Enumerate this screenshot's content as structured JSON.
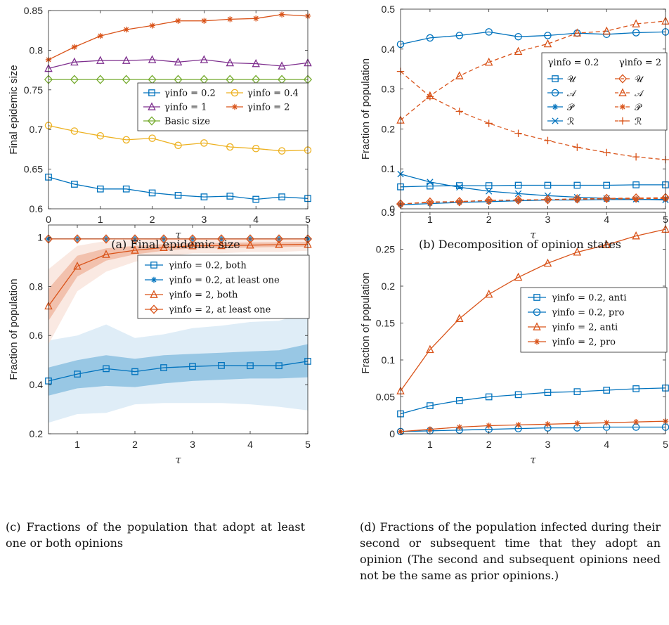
{
  "colors": {
    "blue": "#0072BD",
    "orange": "#D95319",
    "yellow": "#EDB120",
    "purple": "#7E2F8E",
    "green": "#77AC30"
  },
  "captions": {
    "a": "(a) Final epidemic size",
    "b": "(b) Decomposition of opinion states",
    "c": "(c) Fractions of the population that adopt at least one or both opinions",
    "d": "(d) Fractions of the population infected during their second or subsequent time that they adopt an opinion (The second and subsequent opinions need not be the same as prior opinions.)"
  },
  "chart_data": [
    {
      "id": "a",
      "type": "line",
      "xlabel": "τ",
      "ylabel": "Final epidemic size",
      "xlim": [
        0,
        5
      ],
      "ylim": [
        0.6,
        0.85
      ],
      "xticks": [
        0,
        1,
        2,
        3,
        4,
        5
      ],
      "yticks": [
        0.6,
        0.65,
        0.7,
        0.75,
        0.8,
        0.85
      ],
      "ytick_labels": [
        "0.6",
        "0.65",
        "0.7",
        "0.75",
        "0.8",
        "0.85"
      ],
      "grid": false,
      "legend": {
        "placement": "middle-right",
        "columns": 2
      },
      "x": [
        0,
        0.5,
        1,
        1.5,
        2,
        2.5,
        3,
        3.5,
        4,
        4.5,
        5
      ],
      "series": [
        {
          "name": "γinfo = 0.2",
          "color": "#0072BD",
          "marker": "square",
          "values": [
            0.64,
            0.631,
            0.625,
            0.625,
            0.62,
            0.617,
            0.615,
            0.616,
            0.612,
            0.615,
            0.613
          ]
        },
        {
          "name": "γinfo = 0.4",
          "color": "#EDB120",
          "marker": "circle",
          "values": [
            0.705,
            0.698,
            0.692,
            0.687,
            0.689,
            0.68,
            0.683,
            0.678,
            0.676,
            0.673,
            0.674
          ]
        },
        {
          "name": "γinfo = 1",
          "color": "#7E2F8E",
          "marker": "triangle",
          "values": [
            0.777,
            0.785,
            0.787,
            0.787,
            0.788,
            0.785,
            0.788,
            0.784,
            0.783,
            0.78,
            0.784
          ]
        },
        {
          "name": "γinfo = 2",
          "color": "#D95319",
          "marker": "star",
          "values": [
            0.788,
            0.804,
            0.818,
            0.826,
            0.831,
            0.837,
            0.837,
            0.839,
            0.84,
            0.845,
            0.843
          ]
        },
        {
          "name": "Basic size",
          "color": "#77AC30",
          "marker": "diamond",
          "values": [
            0.763,
            0.763,
            0.763,
            0.763,
            0.763,
            0.763,
            0.763,
            0.763,
            0.763,
            0.763,
            0.763
          ]
        }
      ]
    },
    {
      "id": "b",
      "type": "line",
      "xlabel": "τ",
      "ylabel": "Fraction of population",
      "xlim": [
        0.5,
        5
      ],
      "ylim": [
        0,
        0.5
      ],
      "xticks": [
        1,
        2,
        3,
        4,
        5
      ],
      "yticks": [
        0,
        0.1,
        0.2,
        0.3,
        0.4,
        0.5
      ],
      "ytick_labels": [
        "0",
        "0.1",
        "0.2",
        "0.3",
        "0.4",
        "0.5"
      ],
      "grid": false,
      "legend": {
        "placement": "top-right",
        "headers": [
          "γinfo = 0.2",
          "γinfo = 2"
        ],
        "row_labels": [
          "𝒰",
          "𝒜",
          "𝒫",
          "ℛ"
        ]
      },
      "x": [
        0.5,
        1,
        1.5,
        2,
        2.5,
        3,
        3.5,
        4,
        4.5,
        5
      ],
      "series": [
        {
          "name": "𝒰",
          "group": "γinfo = 0.2",
          "color": "#0072BD",
          "marker": "square",
          "dash": false,
          "values": [
            0.055,
            0.057,
            0.058,
            0.058,
            0.059,
            0.059,
            0.059,
            0.059,
            0.06,
            0.06
          ]
        },
        {
          "name": "𝒜",
          "group": "γinfo = 0.2",
          "color": "#0072BD",
          "marker": "circle",
          "dash": false,
          "values": [
            0.412,
            0.428,
            0.434,
            0.443,
            0.431,
            0.434,
            0.44,
            0.437,
            0.441,
            0.443
          ]
        },
        {
          "name": "𝒫",
          "group": "γinfo = 0.2",
          "color": "#0072BD",
          "marker": "star",
          "dash": false,
          "values": [
            0.01,
            0.013,
            0.016,
            0.018,
            0.02,
            0.022,
            0.022,
            0.023,
            0.023,
            0.024
          ]
        },
        {
          "name": "ℛ",
          "group": "γinfo = 0.2",
          "color": "#0072BD",
          "marker": "x",
          "dash": false,
          "values": [
            0.087,
            0.067,
            0.054,
            0.044,
            0.038,
            0.033,
            0.029,
            0.026,
            0.024,
            0.022
          ]
        },
        {
          "name": "𝒰",
          "group": "γinfo = 2",
          "color": "#D95319",
          "marker": "diamond",
          "dash": true,
          "values": [
            0.012,
            0.017,
            0.018,
            0.021,
            0.022,
            0.023,
            0.025,
            0.026,
            0.027,
            0.028
          ]
        },
        {
          "name": "𝒜",
          "group": "γinfo = 2",
          "color": "#D95319",
          "marker": "triangle",
          "dash": true,
          "values": [
            0.222,
            0.283,
            0.333,
            0.367,
            0.394,
            0.413,
            0.44,
            0.445,
            0.463,
            0.47
          ]
        },
        {
          "name": "𝒫",
          "group": "γinfo = 2",
          "color": "#D95319",
          "marker": "star",
          "dash": true,
          "values": [
            0.012,
            0.016,
            0.018,
            0.021,
            0.022,
            0.023,
            0.024,
            0.025,
            0.025,
            0.026
          ]
        },
        {
          "name": "ℛ",
          "group": "γinfo = 2",
          "color": "#D95319",
          "marker": "plus",
          "dash": true,
          "values": [
            0.344,
            0.281,
            0.244,
            0.214,
            0.189,
            0.171,
            0.154,
            0.141,
            0.13,
            0.123
          ]
        }
      ]
    },
    {
      "id": "c",
      "type": "area",
      "xlabel": "τ",
      "ylabel": "Fraction of population",
      "xlim": [
        0.5,
        5
      ],
      "ylim": [
        0.2,
        1.05
      ],
      "xticks": [
        1,
        2,
        3,
        4,
        5
      ],
      "yticks": [
        0.2,
        0.4,
        0.6,
        0.8,
        1
      ],
      "ytick_labels": [
        "0.2",
        "0.4",
        "0.6",
        "0.8",
        "1"
      ],
      "grid": false,
      "legend": {
        "placement": "top-right"
      },
      "x": [
        0.5,
        1,
        1.5,
        2,
        2.5,
        3,
        3.5,
        4,
        4.5,
        5
      ],
      "series": [
        {
          "name": "γinfo = 0.2, both",
          "color": "#0072BD",
          "marker": "square",
          "values": [
            0.415,
            0.443,
            0.465,
            0.453,
            0.469,
            0.474,
            0.478,
            0.477,
            0.477,
            0.495
          ],
          "band_inner": {
            "lo": [
              0.355,
              0.385,
              0.395,
              0.39,
              0.405,
              0.415,
              0.42,
              0.425,
              0.425,
              0.43
            ],
            "hi": [
              0.47,
              0.5,
              0.52,
              0.505,
              0.52,
              0.525,
              0.53,
              0.535,
              0.54,
              0.565
            ]
          },
          "band_outer": {
            "lo": [
              0.245,
              0.28,
              0.285,
              0.32,
              0.325,
              0.325,
              0.325,
              0.32,
              0.31,
              0.295
            ],
            "hi": [
              0.58,
              0.6,
              0.645,
              0.59,
              0.605,
              0.63,
              0.64,
              0.655,
              0.66,
              0.695
            ]
          }
        },
        {
          "name": "γinfo = 0.2, at least one",
          "color": "#0072BD",
          "marker": "star",
          "values": [
            0.993,
            0.993,
            0.993,
            0.993,
            0.993,
            0.993,
            0.993,
            0.993,
            0.993,
            0.993
          ]
        },
        {
          "name": "γinfo = 2, both",
          "color": "#D95319",
          "marker": "triangle",
          "values": [
            0.72,
            0.882,
            0.93,
            0.947,
            0.958,
            0.965,
            0.966,
            0.968,
            0.97,
            0.971
          ],
          "band_inner": {
            "lo": [
              0.66,
              0.84,
              0.905,
              0.93,
              0.945,
              0.955,
              0.955,
              0.958,
              0.96,
              0.962
            ],
            "hi": [
              0.79,
              0.925,
              0.955,
              0.965,
              0.972,
              0.976,
              0.977,
              0.979,
              0.98,
              0.981
            ]
          },
          "band_outer": {
            "lo": [
              0.565,
              0.78,
              0.86,
              0.9,
              0.92,
              0.935,
              0.935,
              0.94,
              0.94,
              0.945
            ],
            "hi": [
              0.87,
              0.965,
              0.985,
              0.99,
              0.993,
              0.995,
              0.995,
              0.995,
              0.995,
              0.995
            ]
          }
        },
        {
          "name": "γinfo = 2, at least one",
          "color": "#D95319",
          "marker": "diamond",
          "values": [
            0.993,
            0.993,
            0.993,
            0.993,
            0.993,
            0.993,
            0.993,
            0.993,
            0.993,
            0.993
          ]
        }
      ]
    },
    {
      "id": "d",
      "type": "line",
      "xlabel": "τ",
      "ylabel": "Fraction of population",
      "xlim": [
        0.5,
        5
      ],
      "ylim": [
        0,
        0.3
      ],
      "xticks": [
        1,
        2,
        3,
        4,
        5
      ],
      "yticks": [
        0,
        0.05,
        0.1,
        0.15,
        0.2,
        0.25,
        0.3
      ],
      "ytick_labels": [
        "0",
        "0.05",
        "0.1",
        "0.15",
        "0.2",
        "0.25",
        "0.3"
      ],
      "grid": false,
      "legend": {
        "placement": "middle-right"
      },
      "x": [
        0.5,
        1,
        1.5,
        2,
        2.5,
        3,
        3.5,
        4,
        4.5,
        5
      ],
      "series": [
        {
          "name": "γinfo = 0.2, anti",
          "color": "#0072BD",
          "marker": "square",
          "values": [
            0.027,
            0.038,
            0.045,
            0.05,
            0.053,
            0.056,
            0.057,
            0.059,
            0.061,
            0.062
          ]
        },
        {
          "name": "γinfo = 0.2, pro",
          "color": "#0072BD",
          "marker": "circle",
          "values": [
            0.003,
            0.004,
            0.005,
            0.006,
            0.007,
            0.008,
            0.008,
            0.009,
            0.009,
            0.009
          ]
        },
        {
          "name": "γinfo = 2, anti",
          "color": "#D95319",
          "marker": "triangle",
          "values": [
            0.058,
            0.114,
            0.156,
            0.189,
            0.212,
            0.231,
            0.246,
            0.256,
            0.268,
            0.277
          ]
        },
        {
          "name": "γinfo = 2, pro",
          "color": "#D95319",
          "marker": "star",
          "values": [
            0.003,
            0.006,
            0.009,
            0.011,
            0.012,
            0.013,
            0.014,
            0.015,
            0.016,
            0.017
          ]
        }
      ]
    }
  ]
}
